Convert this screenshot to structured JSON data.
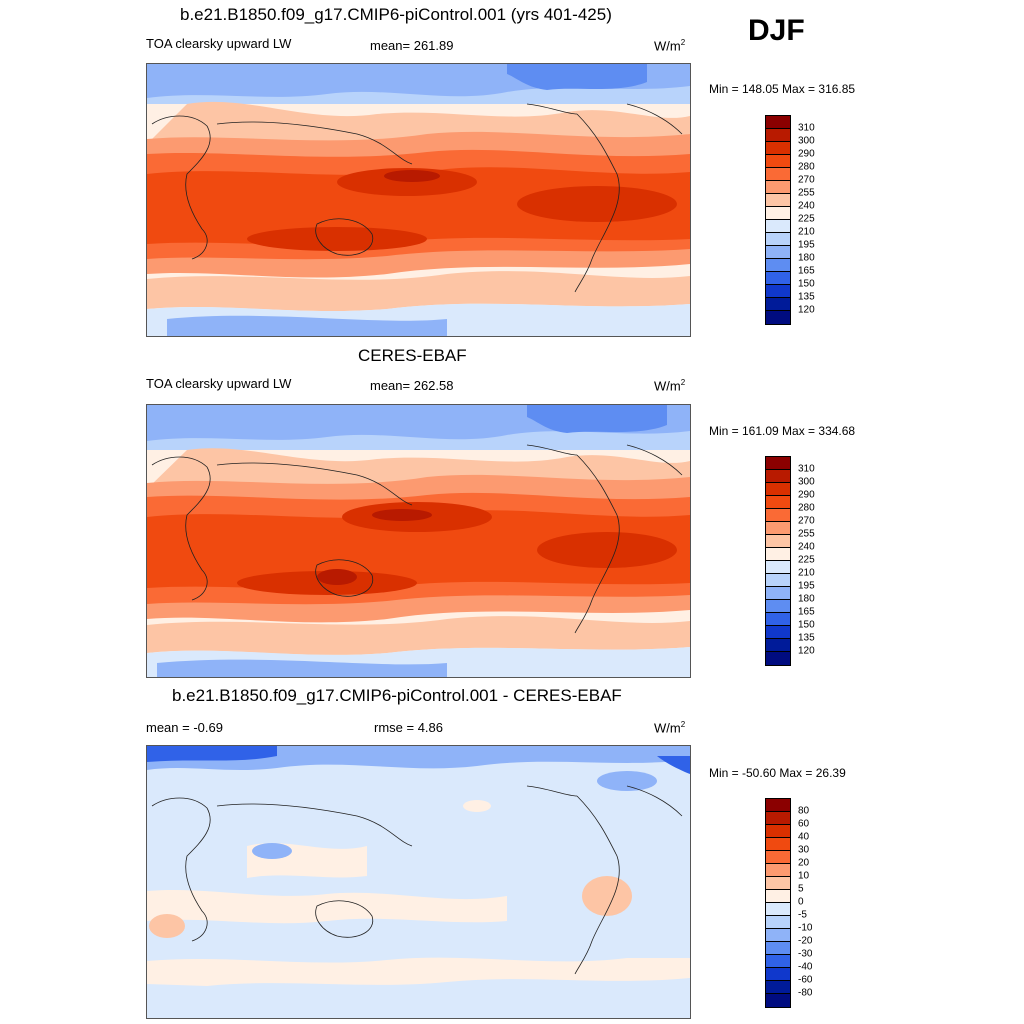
{
  "season": "DJF",
  "units_base": "W/m",
  "units_exp": "2",
  "panels": [
    {
      "title": "b.e21.B1850.f09_g17.CMIP6-piControl.001 (yrs 401-425)",
      "variable": "TOA clearsky upward LW",
      "stat": "mean= 261.89",
      "minmax": "Min = 148.05 Max = 316.85",
      "levels": [
        "310",
        "300",
        "290",
        "280",
        "270",
        "255",
        "240",
        "225",
        "210",
        "195",
        "180",
        "165",
        "150",
        "135",
        "120"
      ]
    },
    {
      "title": "CERES-EBAF",
      "variable": "TOA clearsky upward LW",
      "stat": "mean= 262.58",
      "minmax": "Min = 161.09 Max = 334.68",
      "levels": [
        "310",
        "300",
        "290",
        "280",
        "270",
        "255",
        "240",
        "225",
        "210",
        "195",
        "180",
        "165",
        "150",
        "135",
        "120"
      ]
    },
    {
      "title": "b.e21.B1850.f09_g17.CMIP6-piControl.001 - CERES-EBAF",
      "mean_label": "mean =  -0.69",
      "rmse_label": "rmse =   4.86",
      "minmax": "Min = -50.60 Max =  26.39",
      "levels": [
        "80",
        "60",
        "40",
        "30",
        "20",
        "10",
        "5",
        "0",
        "-5",
        "-10",
        "-20",
        "-30",
        "-40",
        "-60",
        "-80"
      ]
    }
  ],
  "colors": {
    "field": [
      "#8b0000",
      "#b81a00",
      "#d93000",
      "#f04a10",
      "#fa6a35",
      "#fc9a70",
      "#fdc5a5",
      "#fff0e4",
      "#dae9fc",
      "#b8d3fb",
      "#8fb3f8",
      "#5e8df2",
      "#3062e8",
      "#1038cc",
      "#001b99",
      "#000c80"
    ],
    "diff": [
      "#8b0000",
      "#b81a00",
      "#d93000",
      "#f04a10",
      "#fa6a35",
      "#fc9a70",
      "#fdc5a5",
      "#fff0e4",
      "#dae9fc",
      "#b8d3fb",
      "#8fb3f8",
      "#5e8df2",
      "#3062e8",
      "#1038cc",
      "#001b99",
      "#000c80"
    ]
  }
}
